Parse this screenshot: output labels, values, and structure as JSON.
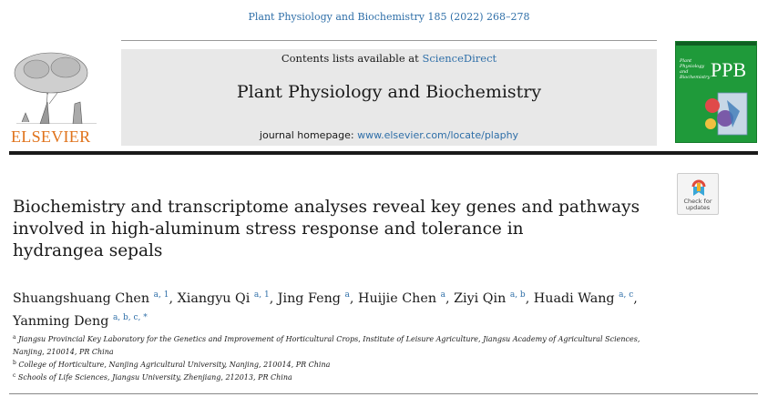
{
  "citation": "Plant Physiology and Biochemistry 185 (2022) 268–278",
  "publisher": {
    "name": "ELSEVIER",
    "color": "#e0731c"
  },
  "banner": {
    "contents_prefix": "Contents lists available at ",
    "contents_link": "ScienceDirect",
    "journal_title": "Plant Physiology and Biochemistry",
    "homepage_prefix": "journal homepage: ",
    "homepage_link": "www.elsevier.com/locate/plaphy"
  },
  "cover": {
    "acronym": "PPB",
    "small_text": "Plant Physiology and Biochemistry",
    "color": "#1f9a3a"
  },
  "crossmark": {
    "line1": "Check for",
    "line2": "updates"
  },
  "article": {
    "title_lines": [
      "Biochemistry and transcriptome analyses reveal key genes and pathways",
      "involved in high-aluminum stress response and tolerance in",
      "hydrangea sepals"
    ]
  },
  "authors": [
    {
      "name": "Shuangshuang Chen",
      "sup": "a, 1",
      "sep": ", "
    },
    {
      "name": "Xiangyu Qi",
      "sup": "a, 1",
      "sep": ", "
    },
    {
      "name": "Jing Feng",
      "sup": "a",
      "sep": ", "
    },
    {
      "name": "Huijie Chen",
      "sup": "a",
      "sep": ", "
    },
    {
      "name": "Ziyi Qin",
      "sup": "a, b",
      "sep": ", "
    },
    {
      "name": "Huadi Wang",
      "sup": "a, c",
      "sep": ","
    },
    {
      "name": "Yanming Deng",
      "sup": "a, b, c, *",
      "sep": ""
    }
  ],
  "affiliations": [
    {
      "key": "a",
      "text": "Jiangsu Provincial Key Laboratory for the Genetics and Improvement of Horticultural Crops, Institute of Leisure Agriculture, Jiangsu Academy of Agricultural Sciences,"
    },
    {
      "key": "",
      "text": "Nanjing, 210014, PR China"
    },
    {
      "key": "b",
      "text": "College of Horticulture, Nanjing Agricultural University, Nanjing, 210014, PR China"
    },
    {
      "key": "c",
      "text": "Schools of Life Sciences, Jiangsu University, Zhenjiang, 212013, PR China"
    }
  ],
  "link_color": "#2f6fa8"
}
